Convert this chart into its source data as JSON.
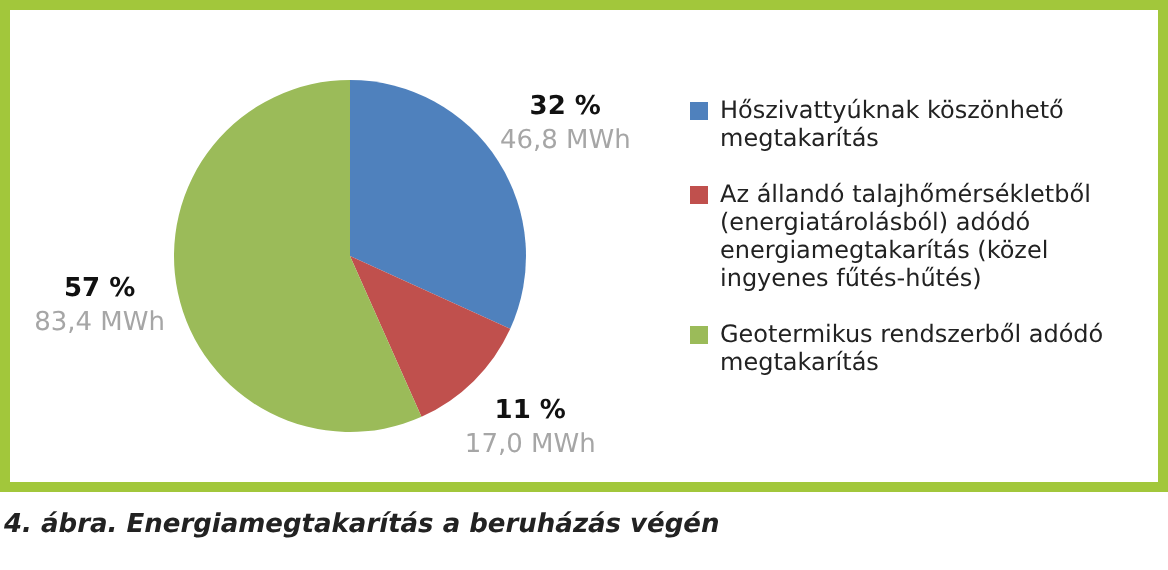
{
  "chart_data": {
    "type": "pie",
    "categories": [
      "Hőszivattyúknak köszönhető megtakarítás",
      "Az állandó talajhőmérsékletből (energiatárolásból) adódó energiamegtakarítás (közel ingyenes fűtés-hűtés)",
      "Geotermikus rendszerből adódó megtakarítás"
    ],
    "values": [
      46.8,
      17.0,
      83.4
    ],
    "colors": [
      "#4f81bd",
      "#c0504d",
      "#9bbb59"
    ],
    "value_labels": [
      "32 %\n46,8 MWh",
      "11 %\n17,0 MWh",
      "57 %\n83,4 MWh"
    ],
    "legend": "right",
    "annotations": [
      "4. ábra. Energiamegtakarítás a beruházás végén"
    ]
  }
}
